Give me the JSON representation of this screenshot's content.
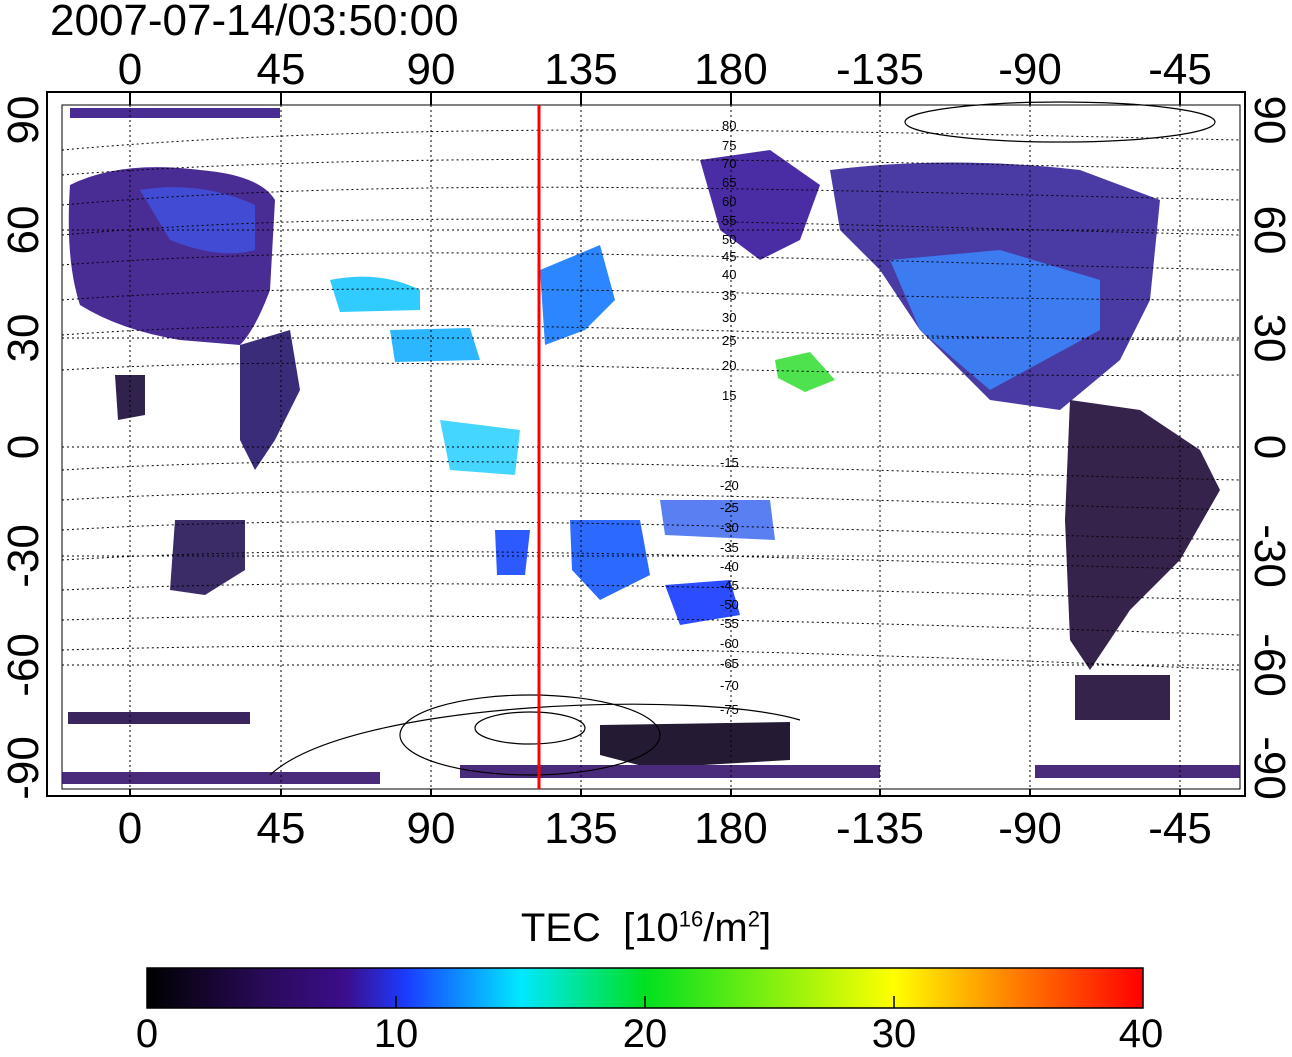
{
  "map": {
    "timestamp": "2007-07-14/03:50:00",
    "x_ticks": [
      "0",
      "45",
      "90",
      "135",
      "180",
      "-135",
      "-90",
      "-45"
    ],
    "y_ticks": [
      "90",
      "60",
      "30",
      "0",
      "-30",
      "-60",
      "-90"
    ],
    "contour_labels_north": [
      "80",
      "75",
      "70",
      "65",
      "60",
      "55",
      "50",
      "45",
      "40",
      "35",
      "30",
      "25",
      "20",
      "15"
    ],
    "contour_labels_south": [
      "-15",
      "-20",
      "-25",
      "-30",
      "-35",
      "-40",
      "-45",
      "-50",
      "-55",
      "-60",
      "-65",
      "-70",
      "-75"
    ],
    "meridian_marker_color": "#ff0000",
    "meridian_longitude": 123
  },
  "colorbar": {
    "title": "TEC",
    "units_prefix": "[10",
    "units_exp1": "16",
    "units_mid": "/m",
    "units_exp2": "2",
    "units_suffix": "]",
    "ticks": [
      "0",
      "10",
      "20",
      "30",
      "40"
    ],
    "min": 0,
    "max": 40,
    "colors": [
      "#000000",
      "#2a0a5a",
      "#3c0d8c",
      "#1a3cff",
      "#00e8ff",
      "#00e020",
      "#ffff00",
      "#ff7a00",
      "#ff0000"
    ]
  }
}
